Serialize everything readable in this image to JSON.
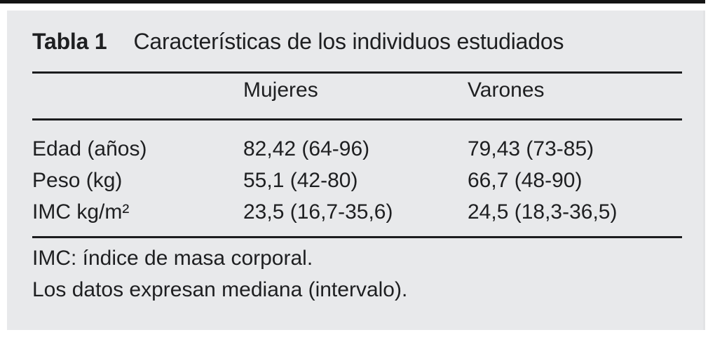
{
  "table": {
    "label": "Tabla 1",
    "title": "Características de los individuos estudiados",
    "columns": [
      "Mujeres",
      "Varones"
    ],
    "rows": [
      {
        "label": "Edad (años)",
        "mujeres": "82,42 (64-96)",
        "varones": "79,43 (73-85)"
      },
      {
        "label": "Peso (kg)",
        "mujeres": "55,1 (42-80)",
        "varones": "66,7 (48-90)"
      },
      {
        "label": "IMC kg/m²",
        "mujeres": "23,5 (16,7-35,6)",
        "varones": "24,5 (18,3-36,5)"
      }
    ],
    "footnotes": [
      "IMC: índice de masa corporal.",
      "Los datos expresan mediana (intervalo)."
    ]
  },
  "colors": {
    "panel_bg": "#e8e9eb",
    "text": "#1e1f21",
    "rule": "#1b1c1e",
    "top_bar": "#141414",
    "page_bg": "#ffffff"
  }
}
